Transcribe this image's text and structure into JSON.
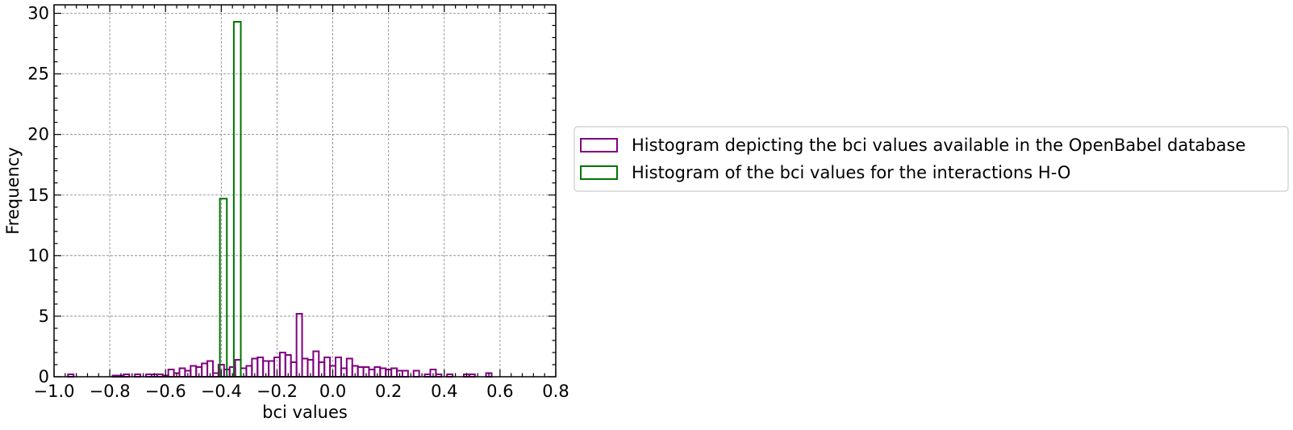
{
  "chart_data": {
    "type": "histogram",
    "xlabel": "bci values",
    "ylabel": "Frequency",
    "xlim": [
      -1.0,
      0.8
    ],
    "ylim": [
      0,
      30.7
    ],
    "xticks": [
      -1.0,
      -0.8,
      -0.6,
      -0.4,
      -0.2,
      0.0,
      0.2,
      0.4,
      0.6,
      0.8
    ],
    "xtick_labels": [
      "−1.0",
      "−0.8",
      "−0.6",
      "−0.4",
      "−0.2",
      "0.0",
      "0.2",
      "0.4",
      "0.6",
      "0.8"
    ],
    "yticks": [
      0,
      5,
      10,
      15,
      20,
      25,
      30
    ],
    "ytick_labels": [
      "0",
      "5",
      "10",
      "15",
      "20",
      "25",
      "30"
    ],
    "grid": true,
    "legend_position": "right",
    "series": [
      {
        "name": "Histogram depicting the bci values available in the OpenBabel database",
        "color": "#800080",
        "bin_start": -0.95,
        "bin_width": 0.02,
        "values": [
          0.2,
          0,
          0,
          0,
          0,
          0,
          0,
          0,
          0.1,
          0.1,
          0.2,
          0,
          0.2,
          0,
          0.2,
          0.2,
          0.2,
          0.1,
          0.6,
          0.3,
          0.7,
          0.5,
          0.9,
          0.8,
          1.1,
          1.3,
          0.3,
          1.0,
          0.6,
          0.8,
          1.4,
          0.7,
          0.9,
          1.5,
          1.6,
          1.3,
          1.3,
          1.6,
          2.0,
          1.8,
          1.2,
          5.2,
          1.5,
          1.4,
          2.1,
          1.2,
          1.6,
          0.9,
          1.6,
          0.7,
          1.5,
          0.9,
          0.8,
          0.8,
          0.6,
          0.8,
          0.7,
          0.6,
          0.7,
          0.5,
          0.5,
          0,
          0.5,
          0,
          0.2,
          0.6,
          0.2,
          0,
          0.2,
          0,
          0,
          0.2,
          0.2,
          0,
          0,
          0.3,
          0
        ]
      },
      {
        "name": "Histogram of the bci values for the interactions H-O",
        "color": "#007500",
        "bin_start": -0.405,
        "bin_width": 0.025,
        "values": [
          14.7,
          0,
          29.3
        ]
      }
    ]
  }
}
